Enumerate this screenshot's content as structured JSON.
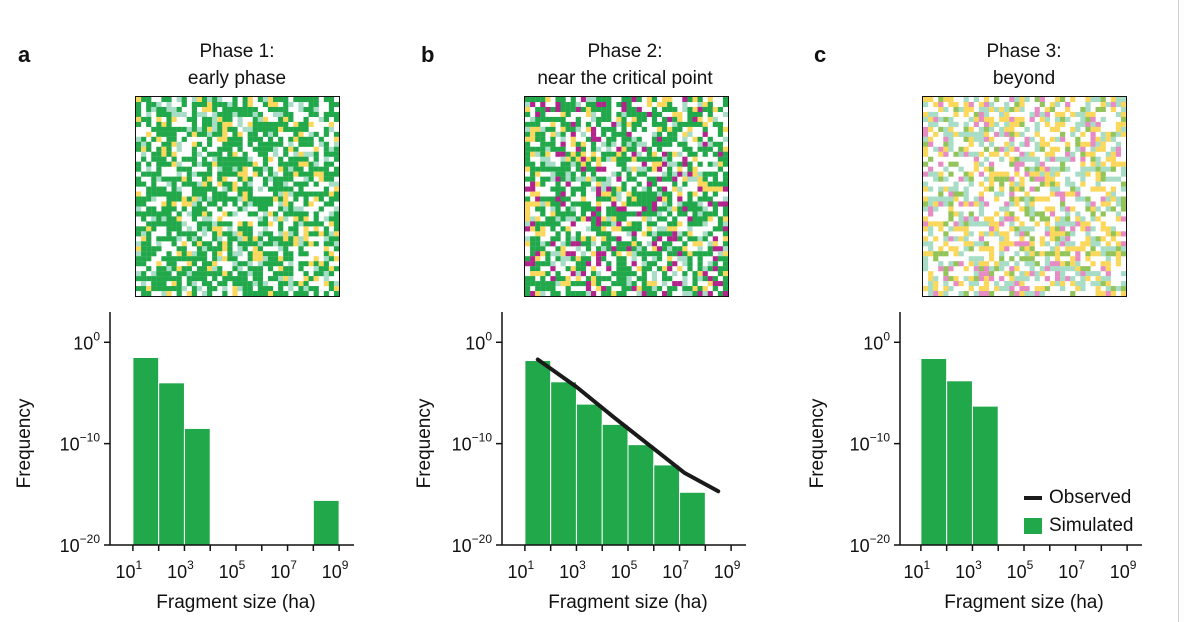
{
  "panels": [
    {
      "letter": "a",
      "title_line1": "Phase 1:",
      "title_line2": "early phase",
      "map_colors": [
        "#21a84a",
        "#21a84a",
        "#21a84a",
        "#21a84a",
        "#21a84a",
        "#ffffff",
        "#ffffff",
        "#ffffff",
        "#fbd75b",
        "#a7dcc6"
      ],
      "chart_data": {
        "type": "bar",
        "xscale": "log10",
        "yscale": "log10",
        "xlabel": "Fragment size (ha)",
        "ylabel": "Frequency",
        "xlim_exponent": [
          0.5,
          9.5
        ],
        "ylim_exponent": [
          -20,
          2
        ],
        "x_tick_labels": [
          "10",
          "10",
          "10",
          "10",
          "10"
        ],
        "x_tick_exponents": [
          "1",
          "3",
          "5",
          "7",
          "9"
        ],
        "y_tick_labels": [
          "10",
          "10",
          "10"
        ],
        "y_tick_exponents": [
          "0",
          "−10",
          "−20"
        ],
        "y_tick_values": [
          0,
          -10,
          -20
        ],
        "series": [
          {
            "name": "Simulated",
            "color": "#21a84a",
            "bin_left_exponents": [
              1,
              2,
              3,
              8
            ],
            "bin_right_exponents": [
              2,
              3,
              4,
              9
            ],
            "log10_frequency": [
              -1.5,
              -4.0,
              -8.5,
              -15.6
            ]
          }
        ]
      }
    },
    {
      "letter": "b",
      "title_line1": "Phase 2:",
      "title_line2": "near the critical point",
      "map_colors": [
        "#21a84a",
        "#21a84a",
        "#21a84a",
        "#21a84a",
        "#ffffff",
        "#ffffff",
        "#ffffff",
        "#fbd75b",
        "#a7dcc6",
        "#b2238c"
      ],
      "chart_data": {
        "type": "bar",
        "xscale": "log10",
        "yscale": "log10",
        "xlabel": "Fragment size (ha)",
        "ylabel": "Frequency",
        "xlim_exponent": [
          0.5,
          9.5
        ],
        "ylim_exponent": [
          -20,
          2
        ],
        "x_tick_labels": [
          "10",
          "10",
          "10",
          "10",
          "10"
        ],
        "x_tick_exponents": [
          "1",
          "3",
          "5",
          "7",
          "9"
        ],
        "y_tick_labels": [
          "10",
          "10",
          "10"
        ],
        "y_tick_exponents": [
          "0",
          "−10",
          "−20"
        ],
        "y_tick_values": [
          0,
          -10,
          -20
        ],
        "series": [
          {
            "name": "Simulated",
            "color": "#21a84a",
            "bin_left_exponents": [
              1,
              2,
              3,
              4,
              5,
              6,
              7
            ],
            "bin_right_exponents": [
              2,
              3,
              4,
              5,
              6,
              7,
              8
            ],
            "log10_frequency": [
              -1.8,
              -3.9,
              -6.1,
              -8.1,
              -10.1,
              -12.1,
              -14.8
            ]
          },
          {
            "name": "Observed",
            "color": "#1a1a1a",
            "type": "line",
            "x_exponent": [
              1.5,
              3,
              4.5,
              6,
              7.2,
              8.5
            ],
            "log10_frequency": [
              -1.7,
              -4.4,
              -7.5,
              -10.5,
              -12.9,
              -14.7
            ]
          }
        ]
      }
    },
    {
      "letter": "c",
      "title_line1": "Phase 3:",
      "title_line2": "beyond",
      "map_colors": [
        "#ffffff",
        "#ffffff",
        "#ffffff",
        "#ffffff",
        "#fbd75b",
        "#fbd75b",
        "#a7dcc6",
        "#a7dcc6",
        "#e68bc4",
        "#92c45a"
      ],
      "chart_data": {
        "type": "bar",
        "xscale": "log10",
        "yscale": "log10",
        "xlabel": "Fragment size (ha)",
        "ylabel": "Frequency",
        "xlim_exponent": [
          0.5,
          9.5
        ],
        "ylim_exponent": [
          -20,
          2
        ],
        "x_tick_labels": [
          "10",
          "10",
          "10",
          "10",
          "10"
        ],
        "x_tick_exponents": [
          "1",
          "3",
          "5",
          "7",
          "9"
        ],
        "y_tick_labels": [
          "10",
          "10",
          "10"
        ],
        "y_tick_exponents": [
          "0",
          "−10",
          "−20"
        ],
        "y_tick_values": [
          0,
          -10,
          -20
        ],
        "series": [
          {
            "name": "Simulated",
            "color": "#21a84a",
            "bin_left_exponents": [
              1,
              2,
              3
            ],
            "bin_right_exponents": [
              2,
              3,
              4
            ],
            "log10_frequency": [
              -1.6,
              -3.8,
              -6.3
            ]
          }
        ]
      }
    }
  ],
  "legend": {
    "observed_label": "Observed",
    "simulated_label": "Simulated",
    "observed_color": "#1a1a1a",
    "simulated_color": "#21a84a"
  }
}
